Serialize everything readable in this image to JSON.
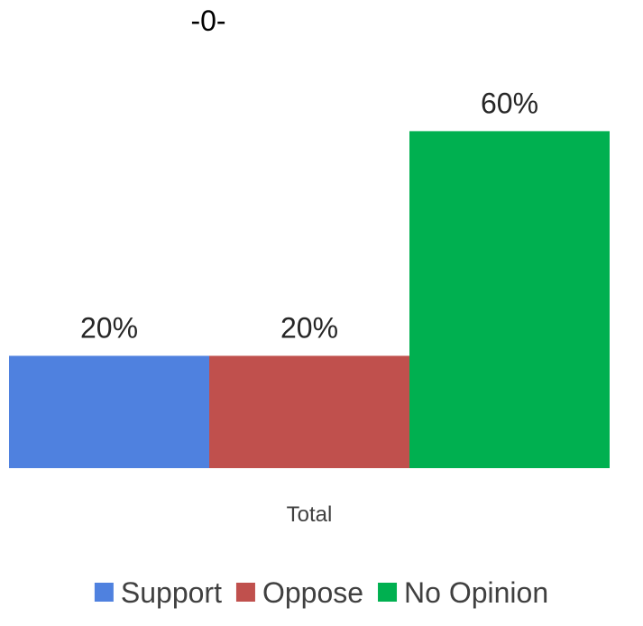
{
  "chart_data": {
    "type": "bar",
    "title": "-0-",
    "categories": [
      "Total"
    ],
    "series": [
      {
        "name": "Support",
        "values": [
          20
        ],
        "label": "20%",
        "color": "#4F81DF"
      },
      {
        "name": "Oppose",
        "values": [
          20
        ],
        "label": "20%",
        "color": "#C0504D"
      },
      {
        "name": "No Opinion",
        "values": [
          60
        ],
        "label": "60%",
        "color": "#00B050"
      }
    ],
    "ylim": [
      0,
      75
    ],
    "value_unit": "%",
    "grid": false,
    "legend_position": "bottom"
  }
}
